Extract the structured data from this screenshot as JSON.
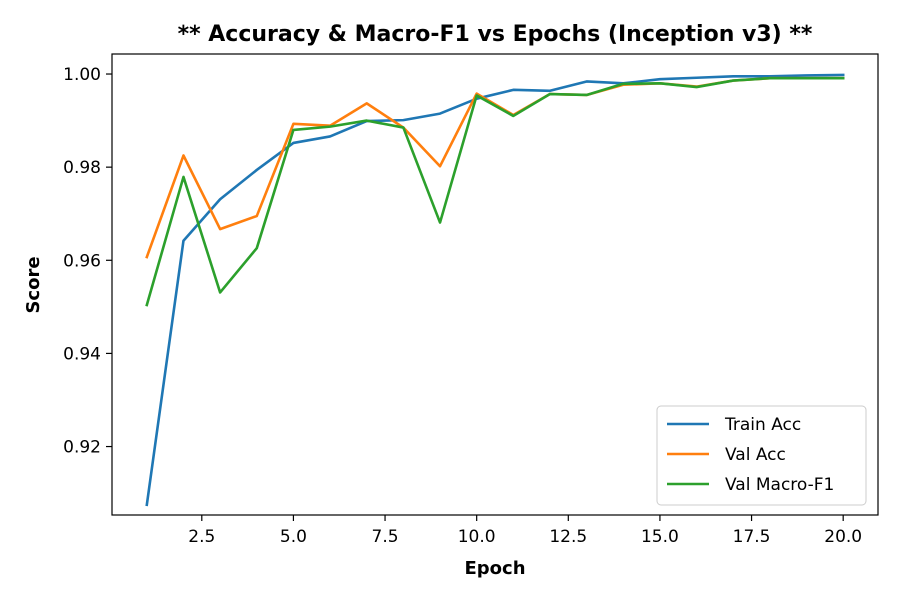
{
  "chart_data": {
    "type": "line",
    "title": "** Accuracy & Macro-F1 vs Epochs (Inception v3) **",
    "xlabel": "Epoch",
    "ylabel": "Score",
    "xlim": [
      0.05,
      20.95
    ],
    "ylim": [
      0.9053,
      1.0043
    ],
    "xticks": [
      2.5,
      5.0,
      7.5,
      10.0,
      12.5,
      15.0,
      17.5,
      20.0
    ],
    "xtick_labels": [
      "2.5",
      "5.0",
      "7.5",
      "10.0",
      "12.5",
      "15.0",
      "17.5",
      "20.0"
    ],
    "yticks": [
      0.92,
      0.94,
      0.96,
      0.98,
      1.0
    ],
    "ytick_labels": [
      "0.92",
      "0.94",
      "0.96",
      "0.98",
      "1.00"
    ],
    "grid": false,
    "legend_position": "bottom-right",
    "x": [
      1,
      2,
      3,
      4,
      5,
      6,
      7,
      8,
      9,
      10,
      11,
      12,
      13,
      14,
      15,
      16,
      17,
      18,
      19,
      20
    ],
    "series": [
      {
        "name": "Train Acc",
        "color": "#1f77b4",
        "values": [
          0.9075,
          0.9642,
          0.9731,
          0.9794,
          0.9852,
          0.9866,
          0.9899,
          0.9901,
          0.9915,
          0.9947,
          0.9966,
          0.9964,
          0.9984,
          0.998,
          0.9989,
          0.9992,
          0.9995,
          0.9995,
          0.9997,
          0.9998
        ]
      },
      {
        "name": "Val Acc",
        "color": "#ff7f0e",
        "values": [
          0.9607,
          0.9825,
          0.9667,
          0.9695,
          0.9893,
          0.9889,
          0.9937,
          0.9885,
          0.9802,
          0.9958,
          0.9912,
          0.9957,
          0.9955,
          0.9977,
          0.998,
          0.9973,
          0.9986,
          0.9991,
          0.9991,
          0.9991
        ]
      },
      {
        "name": "Val Macro-F1",
        "color": "#2ca02c",
        "values": [
          0.9504,
          0.9779,
          0.9531,
          0.9626,
          0.988,
          0.9887,
          0.99,
          0.9885,
          0.9681,
          0.9954,
          0.991,
          0.9957,
          0.9955,
          0.9979,
          0.998,
          0.9972,
          0.9986,
          0.9991,
          0.9991,
          0.9991
        ]
      }
    ]
  }
}
